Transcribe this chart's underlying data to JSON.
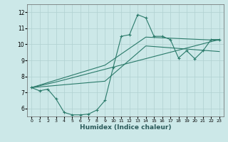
{
  "xlabel": "Humidex (Indice chaleur)",
  "background_color": "#cce8e8",
  "grid_color": "#b0d0d0",
  "line_color": "#2a7a6a",
  "xlim": [
    -0.5,
    23.5
  ],
  "ylim": [
    5.5,
    12.5
  ],
  "yticks": [
    6,
    7,
    8,
    9,
    10,
    11,
    12
  ],
  "xticks": [
    0,
    1,
    2,
    3,
    4,
    5,
    6,
    7,
    8,
    9,
    10,
    11,
    12,
    13,
    14,
    15,
    16,
    17,
    18,
    19,
    20,
    21,
    22,
    23
  ],
  "line1_x": [
    0,
    1,
    2,
    3,
    4,
    5,
    6,
    7,
    8,
    9,
    10,
    11,
    12,
    13,
    14,
    15,
    16,
    17,
    18,
    19,
    20,
    21,
    22,
    23
  ],
  "line1_y": [
    7.3,
    7.1,
    7.2,
    6.6,
    5.75,
    5.6,
    5.6,
    5.65,
    5.9,
    6.5,
    8.55,
    10.5,
    10.6,
    11.85,
    11.65,
    10.5,
    10.5,
    10.3,
    9.15,
    9.6,
    9.1,
    9.6,
    10.3,
    10.3
  ],
  "line2_x": [
    0,
    3,
    23
  ],
  "line2_y": [
    7.3,
    7.65,
    10.3
  ],
  "line3_x": [
    0,
    9,
    14,
    23
  ],
  "line3_y": [
    7.3,
    8.7,
    10.45,
    10.25
  ],
  "line4_x": [
    0,
    9,
    14,
    23
  ],
  "line4_y": [
    7.3,
    7.7,
    9.9,
    9.55
  ]
}
